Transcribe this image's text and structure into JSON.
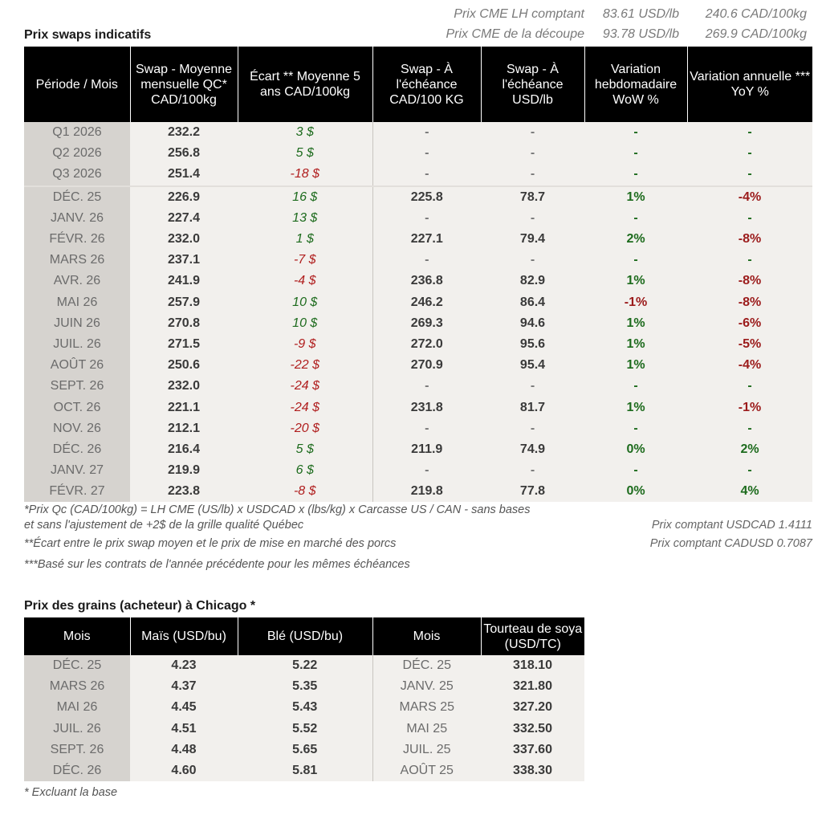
{
  "cme": {
    "row1": {
      "label": "Prix CME LH comptant",
      "usd": "83.61 USD/lb",
      "cad": "240.6 CAD/100kg"
    },
    "row2": {
      "label": "Prix CME de la découpe",
      "usd": "93.78 USD/lb",
      "cad": "269.9 CAD/100kg"
    }
  },
  "swaps": {
    "title": "Prix swaps indicatifs",
    "headers": [
      "Période / Mois",
      "Swap - Moyenne mensuelle QC* CAD/100kg",
      "Écart ** Moyenne 5 ans CAD/100kg",
      "Swap - À l'échéance CAD/100 KG",
      "Swap - À l'échéance USD/lb",
      "Variation hebdomadaire WoW %",
      "Variation annuelle *** YoY %"
    ],
    "rows": [
      {
        "period": "Q1 2026",
        "swap": "232.2",
        "ecart": "3 $",
        "cad": "-",
        "usd": "-",
        "wow": "-",
        "yoy": "-"
      },
      {
        "period": "Q2 2026",
        "swap": "256.8",
        "ecart": "5 $",
        "cad": "-",
        "usd": "-",
        "wow": "-",
        "yoy": "-"
      },
      {
        "period": "Q3 2026",
        "swap": "251.4",
        "ecart": "-18 $",
        "cad": "-",
        "usd": "-",
        "wow": "-",
        "yoy": "-"
      },
      {
        "period": "DÉC. 25",
        "swap": "226.9",
        "ecart": "16 $",
        "cad": "225.8",
        "usd": "78.7",
        "wow": "1%",
        "yoy": "-4%"
      },
      {
        "period": "JANV. 26",
        "swap": "227.4",
        "ecart": "13 $",
        "cad": "-",
        "usd": "-",
        "wow": "-",
        "yoy": "-"
      },
      {
        "period": "FÉVR. 26",
        "swap": "232.0",
        "ecart": "1 $",
        "cad": "227.1",
        "usd": "79.4",
        "wow": "2%",
        "yoy": "-8%"
      },
      {
        "period": "MARS 26",
        "swap": "237.1",
        "ecart": "-7 $",
        "cad": "-",
        "usd": "-",
        "wow": "-",
        "yoy": "-"
      },
      {
        "period": "AVR. 26",
        "swap": "241.9",
        "ecart": "-4 $",
        "cad": "236.8",
        "usd": "82.9",
        "wow": "1%",
        "yoy": "-8%"
      },
      {
        "period": "MAI 26",
        "swap": "257.9",
        "ecart": "10 $",
        "cad": "246.2",
        "usd": "86.4",
        "wow": "-1%",
        "yoy": "-8%"
      },
      {
        "period": "JUIN 26",
        "swap": "270.8",
        "ecart": "10 $",
        "cad": "269.3",
        "usd": "94.6",
        "wow": "1%",
        "yoy": "-6%"
      },
      {
        "period": "JUIL. 26",
        "swap": "271.5",
        "ecart": "-9 $",
        "cad": "272.0",
        "usd": "95.6",
        "wow": "1%",
        "yoy": "-5%"
      },
      {
        "period": "AOÛT 26",
        "swap": "250.6",
        "ecart": "-22 $",
        "cad": "270.9",
        "usd": "95.4",
        "wow": "1%",
        "yoy": "-4%"
      },
      {
        "period": "SEPT. 26",
        "swap": "232.0",
        "ecart": "-24 $",
        "cad": "-",
        "usd": "-",
        "wow": "-",
        "yoy": "-"
      },
      {
        "period": "OCT. 26",
        "swap": "221.1",
        "ecart": "-24 $",
        "cad": "231.8",
        "usd": "81.7",
        "wow": "1%",
        "yoy": "-1%"
      },
      {
        "period": "NOV. 26",
        "swap": "212.1",
        "ecart": "-20 $",
        "cad": "-",
        "usd": "-",
        "wow": "-",
        "yoy": "-"
      },
      {
        "period": "DÉC. 26",
        "swap": "216.4",
        "ecart": "5 $",
        "cad": "211.9",
        "usd": "74.9",
        "wow": "0%",
        "yoy": "2%"
      },
      {
        "period": "JANV. 27",
        "swap": "219.9",
        "ecart": "6 $",
        "cad": "-",
        "usd": "-",
        "wow": "-",
        "yoy": "-"
      },
      {
        "period": "FÉVR. 27",
        "swap": "223.8",
        "ecart": "-8 $",
        "cad": "219.8",
        "usd": "77.8",
        "wow": "0%",
        "yoy": "4%"
      }
    ],
    "notes": {
      "n1a": "*Prix Qc (CAD/100kg) = LH CME (US/lb) x USDCAD x (lbs/kg) x Carcasse US / CAN - sans bases",
      "n1b": "et sans l'ajustement de +2$ de la grille qualité Québec",
      "n2": "**Écart entre le prix swap moyen et le prix de mise en marché des porcs",
      "n3": "***Basé sur les contrats de l'année précédente pour les mêmes échéances",
      "usdcad": "Prix comptant USDCAD 1.4111",
      "cadusd": "Prix comptant CADUSD 0.7087"
    }
  },
  "grains": {
    "title": "Prix des grains (acheteur) à Chicago *",
    "headers": [
      "Mois",
      "Maïs (USD/bu)",
      "Blé (USD/bu)",
      "Mois",
      "Tourteau de soya (USD/TC)"
    ],
    "rows": [
      {
        "mois": "DÉC. 25",
        "mais": "4.23",
        "ble": "5.22",
        "mois2": "DÉC. 25",
        "soya": "318.10"
      },
      {
        "mois": "MARS 26",
        "mais": "4.37",
        "ble": "5.35",
        "mois2": "JANV. 25",
        "soya": "321.80"
      },
      {
        "mois": "MAI 26",
        "mais": "4.45",
        "ble": "5.43",
        "mois2": "MARS 25",
        "soya": "327.20"
      },
      {
        "mois": "JUIL. 26",
        "mais": "4.51",
        "ble": "5.52",
        "mois2": "MAI 25",
        "soya": "332.50"
      },
      {
        "mois": "SEPT. 26",
        "mais": "4.48",
        "ble": "5.65",
        "mois2": "JUIL. 25",
        "soya": "337.60"
      },
      {
        "mois": "DÉC. 26",
        "mais": "4.60",
        "ble": "5.81",
        "mois2": "AOÛT 25",
        "soya": "338.30"
      }
    ],
    "note": "* Excluant la base"
  },
  "colors": {
    "header_bg": "#000000",
    "label_col_bg": "#d6d3cf",
    "cell_bg": "#f2f0ed",
    "positive": "#1d6b1d",
    "negative": "#b01e1e"
  }
}
